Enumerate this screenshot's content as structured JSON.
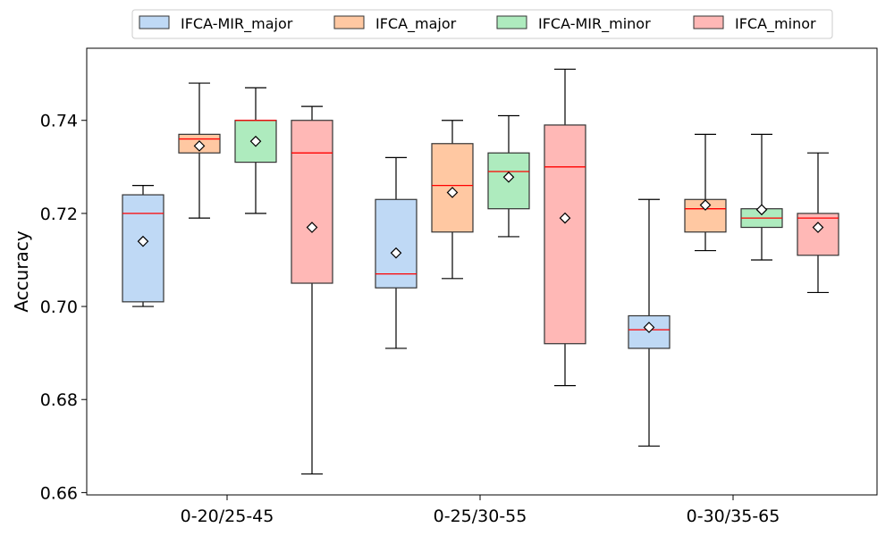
{
  "chart_data": {
    "type": "box",
    "title": "",
    "xlabel": "",
    "ylabel": "Accuracy",
    "ylim": [
      0.6595,
      0.7555
    ],
    "yticks": [
      0.66,
      0.68,
      0.7,
      0.72,
      0.74
    ],
    "ytick_labels": [
      "0.66",
      "0.68",
      "0.70",
      "0.72",
      "0.74"
    ],
    "grid": false,
    "legend_position": "top-center",
    "categories": [
      "0-20/25-45",
      "0-25/30-55",
      "0-30/35-65"
    ],
    "series": [
      {
        "name": "IFCA-MIR_major",
        "color": "#bfd9f5",
        "boxes": [
          {
            "whisker_low": 0.7,
            "q1": 0.701,
            "median": 0.72,
            "q3": 0.724,
            "whisker_high": 0.726,
            "mean": 0.714
          },
          {
            "whisker_low": 0.691,
            "q1": 0.704,
            "median": 0.707,
            "q3": 0.723,
            "whisker_high": 0.732,
            "mean": 0.7115
          },
          {
            "whisker_low": 0.67,
            "q1": 0.691,
            "median": 0.695,
            "q3": 0.698,
            "whisker_high": 0.723,
            "mean": 0.6955
          }
        ]
      },
      {
        "name": "IFCA_major",
        "color": "#ffc8a2",
        "boxes": [
          {
            "whisker_low": 0.719,
            "q1": 0.733,
            "median": 0.736,
            "q3": 0.737,
            "whisker_high": 0.748,
            "mean": 0.7345
          },
          {
            "whisker_low": 0.706,
            "q1": 0.716,
            "median": 0.726,
            "q3": 0.735,
            "whisker_high": 0.74,
            "mean": 0.7245
          },
          {
            "whisker_low": 0.712,
            "q1": 0.716,
            "median": 0.721,
            "q3": 0.723,
            "whisker_high": 0.737,
            "mean": 0.7218
          }
        ]
      },
      {
        "name": "IFCA-MIR_minor",
        "color": "#aeebbe",
        "boxes": [
          {
            "whisker_low": 0.72,
            "q1": 0.731,
            "median": 0.74,
            "q3": 0.74,
            "whisker_high": 0.747,
            "mean": 0.7355
          },
          {
            "whisker_low": 0.715,
            "q1": 0.721,
            "median": 0.729,
            "q3": 0.733,
            "whisker_high": 0.741,
            "mean": 0.7278
          },
          {
            "whisker_low": 0.71,
            "q1": 0.717,
            "median": 0.719,
            "q3": 0.721,
            "whisker_high": 0.737,
            "mean": 0.7208
          }
        ]
      },
      {
        "name": "IFCA_minor",
        "color": "#ffb8b6",
        "boxes": [
          {
            "whisker_low": 0.664,
            "q1": 0.705,
            "median": 0.733,
            "q3": 0.74,
            "whisker_high": 0.743,
            "mean": 0.717
          },
          {
            "whisker_low": 0.683,
            "q1": 0.692,
            "median": 0.73,
            "q3": 0.739,
            "whisker_high": 0.751,
            "mean": 0.719
          },
          {
            "whisker_low": 0.703,
            "q1": 0.711,
            "median": 0.719,
            "q3": 0.72,
            "whisker_high": 0.733,
            "mean": 0.717
          }
        ]
      }
    ],
    "box_edge_color": "#333333",
    "median_color": "#ff0000",
    "mean_marker": "diamond"
  }
}
